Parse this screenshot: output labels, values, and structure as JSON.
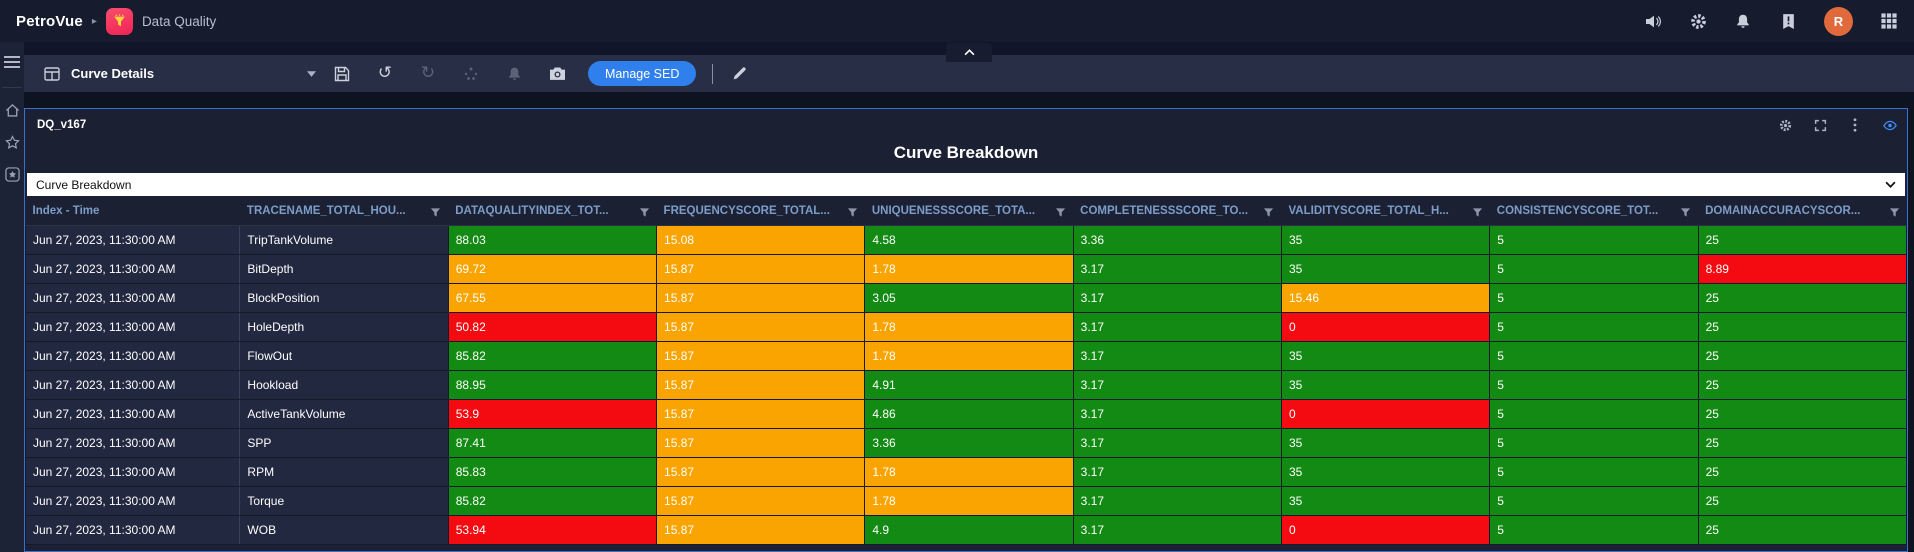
{
  "topbar": {
    "brand": "PetroVue",
    "app_name": "Data Quality",
    "user_initial": "R",
    "right_icons": [
      "volume-icon",
      "settings-gear-icon",
      "notifications-bell-icon",
      "alerts-icon",
      "avatar",
      "apps-grid-icon"
    ]
  },
  "sidebar": {
    "icons": [
      "hamburger-menu-icon",
      "home-icon",
      "favorites-star-icon",
      "starred-items-icon"
    ]
  },
  "toolbar": {
    "view_selector": {
      "value": "Curve Details"
    },
    "icons": [
      "save-icon",
      "undo-icon",
      "redo-icon",
      "sparkle-icon",
      "bell-icon",
      "camera-icon",
      "pencil-icon"
    ],
    "undo_glyph": "↺",
    "redo_glyph": "↻",
    "manage_button_label": "Manage SED"
  },
  "panel": {
    "version_label": "DQ_v167",
    "title": "Curve Breakdown",
    "selector_value": "Curve Breakdown",
    "corner_icons": [
      "gear-icon",
      "expand-icon",
      "kebab-menu-icon",
      "eye-icon"
    ]
  },
  "colors": {
    "green": "#138a13",
    "orange": "#f9a400",
    "red": "#f40b12",
    "accent_blue": "#2f80ed",
    "eye_blue": "#3f8cff",
    "header_text": "#7d9cc8"
  },
  "table": {
    "columns": [
      {
        "label": "Index - Time",
        "filter": false
      },
      {
        "label": "TRACENAME_TOTAL_HOU...",
        "filter": true
      },
      {
        "label": "DATAQUALITYINDEX_TOT...",
        "filter": true
      },
      {
        "label": "FREQUENCYSCORE_TOTAL...",
        "filter": true
      },
      {
        "label": "UNIQUENESSSCORE_TOTA...",
        "filter": true
      },
      {
        "label": "COMPLETENESSSCORE_TO...",
        "filter": true
      },
      {
        "label": "VALIDITYSCORE_TOTAL_H...",
        "filter": true
      },
      {
        "label": "CONSISTENCYSCORE_TOT...",
        "filter": true
      },
      {
        "label": "DOMAINACCURACYSCOR...",
        "filter": true
      }
    ],
    "rows": [
      {
        "time": "Jun 27, 2023, 11:30:00 AM",
        "trace": "TripTankVolume",
        "scores": [
          {
            "v": "88.03",
            "c": "green"
          },
          {
            "v": "15.08",
            "c": "orange"
          },
          {
            "v": "4.58",
            "c": "green"
          },
          {
            "v": "3.36",
            "c": "green"
          },
          {
            "v": "35",
            "c": "green"
          },
          {
            "v": "5",
            "c": "green"
          },
          {
            "v": "25",
            "c": "green"
          }
        ]
      },
      {
        "time": "Jun 27, 2023, 11:30:00 AM",
        "trace": "BitDepth",
        "scores": [
          {
            "v": "69.72",
            "c": "orange"
          },
          {
            "v": "15.87",
            "c": "orange"
          },
          {
            "v": "1.78",
            "c": "orange"
          },
          {
            "v": "3.17",
            "c": "green"
          },
          {
            "v": "35",
            "c": "green"
          },
          {
            "v": "5",
            "c": "green"
          },
          {
            "v": "8.89",
            "c": "red"
          }
        ]
      },
      {
        "time": "Jun 27, 2023, 11:30:00 AM",
        "trace": "BlockPosition",
        "scores": [
          {
            "v": "67.55",
            "c": "orange"
          },
          {
            "v": "15.87",
            "c": "orange"
          },
          {
            "v": "3.05",
            "c": "green"
          },
          {
            "v": "3.17",
            "c": "green"
          },
          {
            "v": "15.46",
            "c": "orange"
          },
          {
            "v": "5",
            "c": "green"
          },
          {
            "v": "25",
            "c": "green"
          }
        ]
      },
      {
        "time": "Jun 27, 2023, 11:30:00 AM",
        "trace": "HoleDepth",
        "scores": [
          {
            "v": "50.82",
            "c": "red"
          },
          {
            "v": "15.87",
            "c": "orange"
          },
          {
            "v": "1.78",
            "c": "orange"
          },
          {
            "v": "3.17",
            "c": "green"
          },
          {
            "v": "0",
            "c": "red"
          },
          {
            "v": "5",
            "c": "green"
          },
          {
            "v": "25",
            "c": "green"
          }
        ]
      },
      {
        "time": "Jun 27, 2023, 11:30:00 AM",
        "trace": "FlowOut",
        "scores": [
          {
            "v": "85.82",
            "c": "green"
          },
          {
            "v": "15.87",
            "c": "orange"
          },
          {
            "v": "1.78",
            "c": "orange"
          },
          {
            "v": "3.17",
            "c": "green"
          },
          {
            "v": "35",
            "c": "green"
          },
          {
            "v": "5",
            "c": "green"
          },
          {
            "v": "25",
            "c": "green"
          }
        ]
      },
      {
        "time": "Jun 27, 2023, 11:30:00 AM",
        "trace": "Hookload",
        "scores": [
          {
            "v": "88.95",
            "c": "green"
          },
          {
            "v": "15.87",
            "c": "orange"
          },
          {
            "v": "4.91",
            "c": "green"
          },
          {
            "v": "3.17",
            "c": "green"
          },
          {
            "v": "35",
            "c": "green"
          },
          {
            "v": "5",
            "c": "green"
          },
          {
            "v": "25",
            "c": "green"
          }
        ]
      },
      {
        "time": "Jun 27, 2023, 11:30:00 AM",
        "trace": "ActiveTankVolume",
        "scores": [
          {
            "v": "53.9",
            "c": "red"
          },
          {
            "v": "15.87",
            "c": "orange"
          },
          {
            "v": "4.86",
            "c": "green"
          },
          {
            "v": "3.17",
            "c": "green"
          },
          {
            "v": "0",
            "c": "red"
          },
          {
            "v": "5",
            "c": "green"
          },
          {
            "v": "25",
            "c": "green"
          }
        ]
      },
      {
        "time": "Jun 27, 2023, 11:30:00 AM",
        "trace": "SPP",
        "scores": [
          {
            "v": "87.41",
            "c": "green"
          },
          {
            "v": "15.87",
            "c": "orange"
          },
          {
            "v": "3.36",
            "c": "green"
          },
          {
            "v": "3.17",
            "c": "green"
          },
          {
            "v": "35",
            "c": "green"
          },
          {
            "v": "5",
            "c": "green"
          },
          {
            "v": "25",
            "c": "green"
          }
        ]
      },
      {
        "time": "Jun 27, 2023, 11:30:00 AM",
        "trace": "RPM",
        "scores": [
          {
            "v": "85.83",
            "c": "green"
          },
          {
            "v": "15.87",
            "c": "orange"
          },
          {
            "v": "1.78",
            "c": "orange"
          },
          {
            "v": "3.17",
            "c": "green"
          },
          {
            "v": "35",
            "c": "green"
          },
          {
            "v": "5",
            "c": "green"
          },
          {
            "v": "25",
            "c": "green"
          }
        ]
      },
      {
        "time": "Jun 27, 2023, 11:30:00 AM",
        "trace": "Torque",
        "scores": [
          {
            "v": "85.82",
            "c": "green"
          },
          {
            "v": "15.87",
            "c": "orange"
          },
          {
            "v": "1.78",
            "c": "orange"
          },
          {
            "v": "3.17",
            "c": "green"
          },
          {
            "v": "35",
            "c": "green"
          },
          {
            "v": "5",
            "c": "green"
          },
          {
            "v": "25",
            "c": "green"
          }
        ]
      },
      {
        "time": "Jun 27, 2023, 11:30:00 AM",
        "trace": "WOB",
        "scores": [
          {
            "v": "53.94",
            "c": "red"
          },
          {
            "v": "15.87",
            "c": "orange"
          },
          {
            "v": "4.9",
            "c": "green"
          },
          {
            "v": "3.17",
            "c": "green"
          },
          {
            "v": "0",
            "c": "red"
          },
          {
            "v": "5",
            "c": "green"
          },
          {
            "v": "25",
            "c": "green"
          }
        ]
      }
    ]
  }
}
